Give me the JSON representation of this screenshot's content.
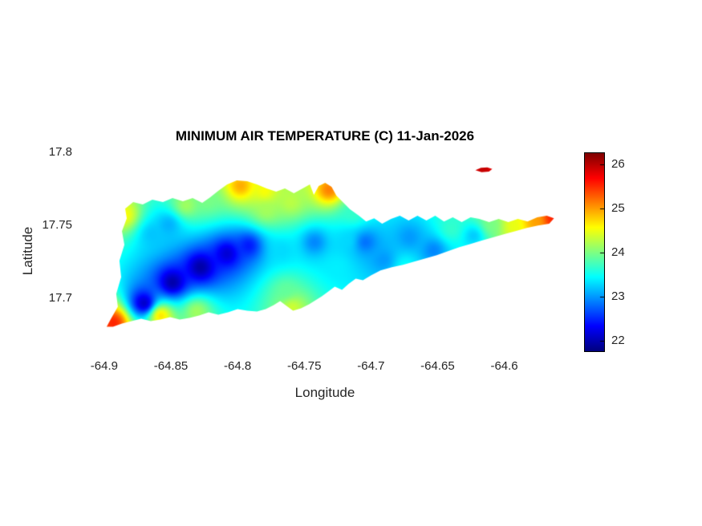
{
  "figure": {
    "background": "#ffffff",
    "axis_text_color": "#262626",
    "title_color": "#000000"
  },
  "chart_data": {
    "type": "heatmap",
    "title": "MINIMUM AIR TEMPERATURE (C) 11-Jan-2026",
    "xlabel": "Longitude",
    "ylabel": "Latitude",
    "units": "C",
    "colormap": "jet",
    "grid": false,
    "xlim": [
      -64.918,
      -64.551
    ],
    "ylim": [
      17.663,
      17.801
    ],
    "xticks": [
      -64.9,
      -64.85,
      -64.8,
      -64.75,
      -64.7,
      -64.65,
      -64.6
    ],
    "yticks": [
      17.7,
      17.75,
      17.8
    ],
    "clim": [
      21.78,
      26.27
    ],
    "colorbar_ticks": [
      22,
      23,
      24,
      25,
      26
    ],
    "colorbar_position": "right",
    "islands": [
      {
        "name": "st-croix",
        "outline": [
          [
            -64.8982,
            17.6808
          ],
          [
            -64.8946,
            17.6868
          ],
          [
            -64.8898,
            17.6945
          ],
          [
            -64.891,
            17.7033
          ],
          [
            -64.8873,
            17.7148
          ],
          [
            -64.8886,
            17.7258
          ],
          [
            -64.8849,
            17.7368
          ],
          [
            -64.8867,
            17.7461
          ],
          [
            -64.8831,
            17.7549
          ],
          [
            -64.8843,
            17.7615
          ],
          [
            -64.8783,
            17.7659
          ],
          [
            -64.8711,
            17.7643
          ],
          [
            -64.8639,
            17.7676
          ],
          [
            -64.856,
            17.7659
          ],
          [
            -64.8488,
            17.7687
          ],
          [
            -64.841,
            17.7665
          ],
          [
            -64.8337,
            17.7687
          ],
          [
            -64.8265,
            17.7654
          ],
          [
            -64.8205,
            17.7692
          ],
          [
            -64.8145,
            17.7736
          ],
          [
            -64.8078,
            17.778
          ],
          [
            -64.8006,
            17.7808
          ],
          [
            -64.7928,
            17.7802
          ],
          [
            -64.7855,
            17.778
          ],
          [
            -64.7783,
            17.7753
          ],
          [
            -64.7711,
            17.7731
          ],
          [
            -64.7645,
            17.7753
          ],
          [
            -64.7578,
            17.772
          ],
          [
            -64.7512,
            17.7753
          ],
          [
            -64.7458,
            17.778
          ],
          [
            -64.7428,
            17.7709
          ],
          [
            -64.7392,
            17.7769
          ],
          [
            -64.7343,
            17.7791
          ],
          [
            -64.7295,
            17.7764
          ],
          [
            -64.7259,
            17.7703
          ],
          [
            -64.7211,
            17.7659
          ],
          [
            -64.7157,
            17.761
          ],
          [
            -64.709,
            17.7566
          ],
          [
            -64.7036,
            17.7527
          ],
          [
            -64.6976,
            17.7549
          ],
          [
            -64.6916,
            17.7511
          ],
          [
            -64.6849,
            17.7544
          ],
          [
            -64.6783,
            17.7566
          ],
          [
            -64.6717,
            17.7533
          ],
          [
            -64.6651,
            17.7566
          ],
          [
            -64.6584,
            17.7533
          ],
          [
            -64.6518,
            17.7566
          ],
          [
            -64.6452,
            17.7527
          ],
          [
            -64.6386,
            17.7555
          ],
          [
            -64.6319,
            17.7522
          ],
          [
            -64.6253,
            17.7555
          ],
          [
            -64.6187,
            17.7544
          ],
          [
            -64.6114,
            17.7522
          ],
          [
            -64.6042,
            17.7544
          ],
          [
            -64.597,
            17.7522
          ],
          [
            -64.5898,
            17.7544
          ],
          [
            -64.5825,
            17.7527
          ],
          [
            -64.5753,
            17.7555
          ],
          [
            -64.5681,
            17.7566
          ],
          [
            -64.5627,
            17.7549
          ],
          [
            -64.5663,
            17.7511
          ],
          [
            -64.5747,
            17.75
          ],
          [
            -64.5831,
            17.7483
          ],
          [
            -64.5916,
            17.7461
          ],
          [
            -64.6,
            17.744
          ],
          [
            -64.6084,
            17.7418
          ],
          [
            -64.6169,
            17.7396
          ],
          [
            -64.6253,
            17.7374
          ],
          [
            -64.6337,
            17.7352
          ],
          [
            -64.6422,
            17.7324
          ],
          [
            -64.6506,
            17.7297
          ],
          [
            -64.659,
            17.7275
          ],
          [
            -64.6675,
            17.7253
          ],
          [
            -64.6759,
            17.7231
          ],
          [
            -64.6843,
            17.7214
          ],
          [
            -64.6928,
            17.7192
          ],
          [
            -64.7,
            17.7159
          ],
          [
            -64.706,
            17.7126
          ],
          [
            -64.7114,
            17.7137
          ],
          [
            -64.7169,
            17.7099
          ],
          [
            -64.7217,
            17.706
          ],
          [
            -64.7271,
            17.7082
          ],
          [
            -64.7319,
            17.7049
          ],
          [
            -64.7368,
            17.7016
          ],
          [
            -64.7416,
            17.6989
          ],
          [
            -64.7464,
            17.6961
          ],
          [
            -64.7524,
            17.6934
          ],
          [
            -64.7584,
            17.6917
          ],
          [
            -64.7633,
            17.695
          ],
          [
            -64.7681,
            17.6983
          ],
          [
            -64.7729,
            17.6956
          ],
          [
            -64.7789,
            17.6928
          ],
          [
            -64.7855,
            17.6912
          ],
          [
            -64.7928,
            17.6917
          ],
          [
            -64.8,
            17.6928
          ],
          [
            -64.8072,
            17.6907
          ],
          [
            -64.8145,
            17.689
          ],
          [
            -64.8217,
            17.6907
          ],
          [
            -64.8289,
            17.6885
          ],
          [
            -64.8361,
            17.6868
          ],
          [
            -64.8434,
            17.6857
          ],
          [
            -64.8506,
            17.6874
          ],
          [
            -64.8578,
            17.6857
          ],
          [
            -64.8651,
            17.6846
          ],
          [
            -64.8723,
            17.6863
          ],
          [
            -64.8795,
            17.6846
          ],
          [
            -64.8867,
            17.683
          ],
          [
            -64.8934,
            17.6808
          ]
        ]
      },
      {
        "name": "buck-island",
        "outline": [
          [
            -64.6217,
            17.7877
          ],
          [
            -64.6175,
            17.7893
          ],
          [
            -64.6127,
            17.7897
          ],
          [
            -64.609,
            17.7885
          ],
          [
            -64.6115,
            17.7867
          ],
          [
            -64.617,
            17.7864
          ]
        ]
      }
    ],
    "stations": [
      [
        -64.8928,
        17.6835,
        25.6
      ],
      [
        -64.8849,
        17.7571,
        24.6
      ],
      [
        -64.8639,
        17.744,
        23.2
      ],
      [
        -64.8518,
        17.7505,
        23.1
      ],
      [
        -64.8386,
        17.7637,
        24.2
      ],
      [
        -64.8699,
        17.6967,
        22.0
      ],
      [
        -64.8488,
        17.711,
        21.9
      ],
      [
        -64.8277,
        17.7214,
        21.9
      ],
      [
        -64.8078,
        17.7308,
        22.1
      ],
      [
        -64.7916,
        17.7363,
        22.4
      ],
      [
        -64.8578,
        17.6885,
        24.8
      ],
      [
        -64.8307,
        17.6912,
        24.2
      ],
      [
        -64.7976,
        17.7769,
        25.0
      ],
      [
        -64.7783,
        17.7604,
        24.2
      ],
      [
        -64.7602,
        17.7659,
        24.3
      ],
      [
        -64.7313,
        17.7742,
        25.2
      ],
      [
        -64.7663,
        17.733,
        23.3
      ],
      [
        -64.7639,
        17.7055,
        23.9
      ],
      [
        -64.759,
        17.6939,
        24.4
      ],
      [
        -64.7422,
        17.7385,
        22.9
      ],
      [
        -64.7253,
        17.722,
        23.4
      ],
      [
        -64.7042,
        17.7385,
        22.8
      ],
      [
        -64.6904,
        17.7264,
        23.0
      ],
      [
        -64.6711,
        17.7418,
        23.0
      ],
      [
        -64.653,
        17.733,
        22.9
      ],
      [
        -64.6398,
        17.7473,
        23.7
      ],
      [
        -64.6229,
        17.7429,
        23.2
      ],
      [
        -64.6096,
        17.7505,
        24.0
      ],
      [
        -64.5928,
        17.7495,
        24.5
      ],
      [
        -64.5759,
        17.7527,
        25.0
      ],
      [
        -64.5639,
        17.7549,
        25.6
      ],
      [
        -64.8229,
        17.767,
        24.0
      ],
      [
        -64.7133,
        17.7582,
        23.7
      ],
      [
        -64.616,
        17.788,
        26.0
      ],
      [
        -64.7795,
        17.7736,
        24.6
      ],
      [
        -64.7181,
        17.7396,
        23.3
      ],
      [
        -64.6741,
        17.722,
        23.5
      ]
    ]
  }
}
